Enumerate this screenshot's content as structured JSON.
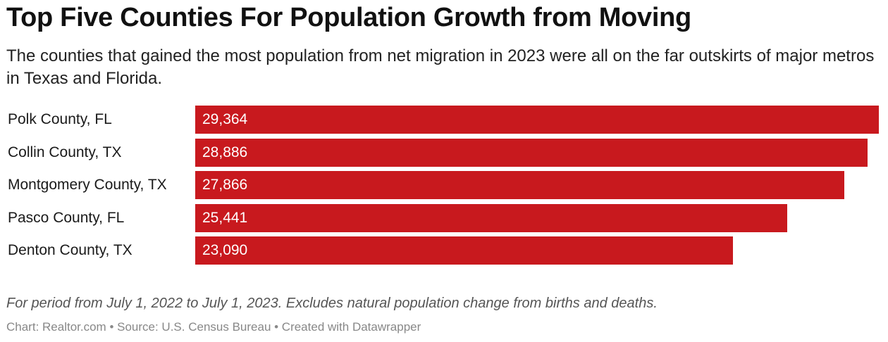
{
  "chart_data": {
    "type": "bar",
    "orientation": "horizontal",
    "title": "Top Five Counties For Population Growth from Moving",
    "subtitle": "The counties that gained the most population from net migration in 2023 were all on the far outskirts of major metros in Texas and Florida.",
    "categories": [
      "Polk County, FL",
      "Collin County, TX",
      "Montgomery County, TX",
      "Pasco County, FL",
      "Denton County, TX"
    ],
    "values": [
      29364,
      28886,
      27866,
      25441,
      23090
    ],
    "value_labels": [
      "29,364",
      "28,886",
      "27,866",
      "25,441",
      "23,090"
    ],
    "xlim": [
      0,
      29364
    ],
    "bar_color": "#c8191e",
    "grid": false,
    "note": "For period from July 1, 2022 to July 1, 2023. Excludes natural population change from births and deaths.",
    "credits": "Chart: Realtor.com • Source: U.S. Census Bureau • Created with Datawrapper"
  }
}
